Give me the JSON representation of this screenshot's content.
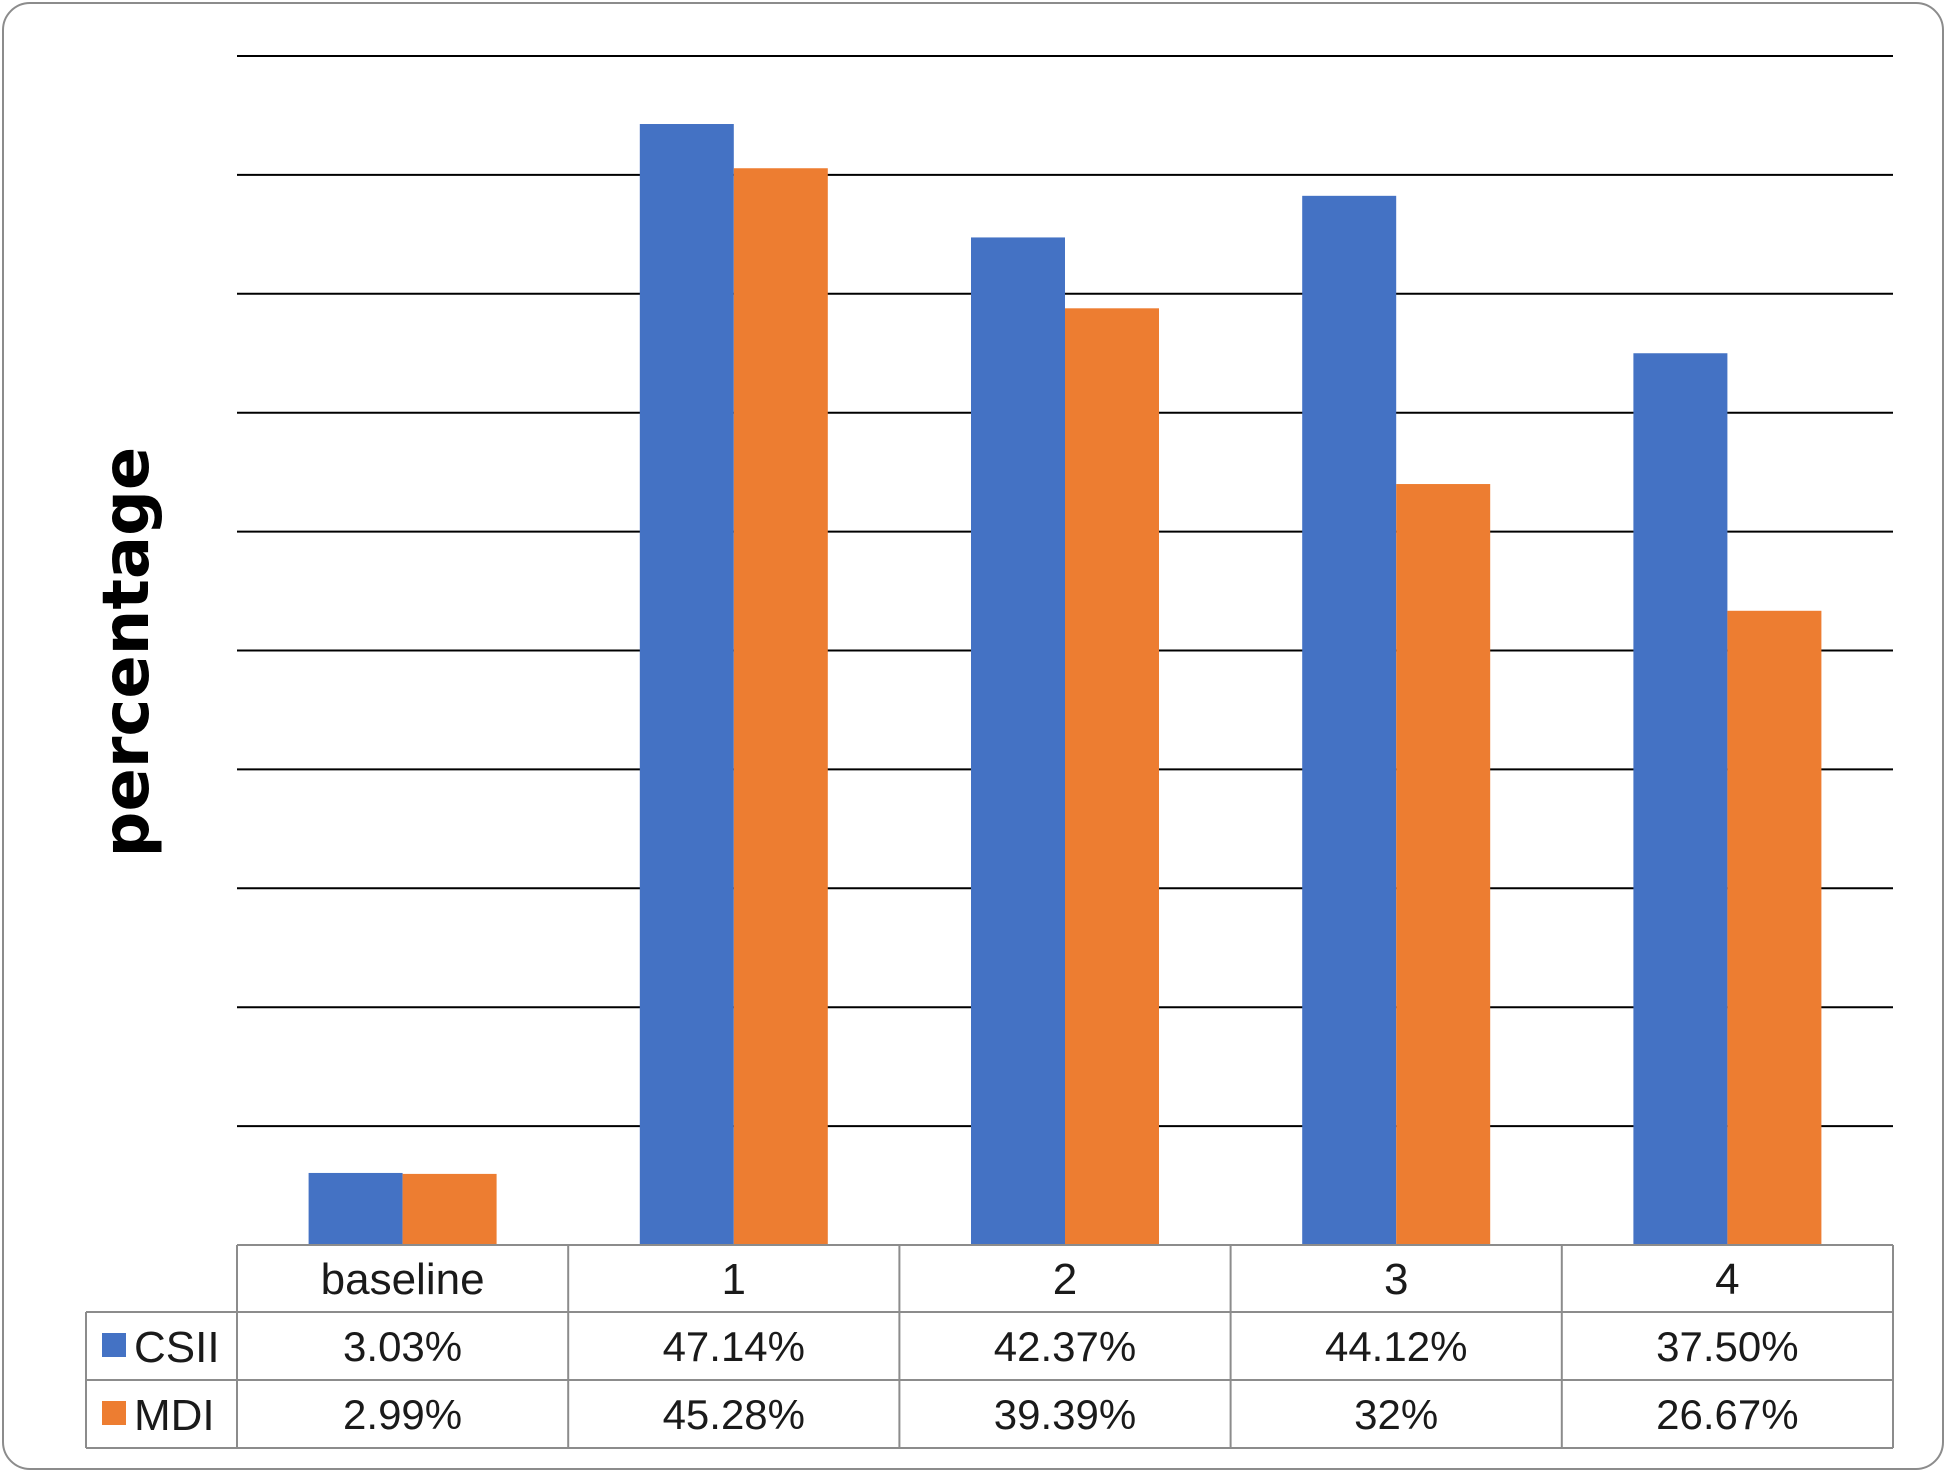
{
  "chart_data": {
    "type": "bar",
    "categories": [
      "baseline",
      "1",
      "2",
      "3",
      "4"
    ],
    "ylabel": "percentage",
    "xlabel": "",
    "title": "",
    "ylim": [
      0,
      50
    ],
    "gridlines": true,
    "legend": "bottom-left data table",
    "series": [
      {
        "name": "CSII",
        "color": "#4472C4",
        "values": [
          3.03,
          47.14,
          42.37,
          44.12,
          37.5
        ],
        "labels": [
          "3.03%",
          "47.14%",
          "42.37%",
          "44.12%",
          "37.50%"
        ]
      },
      {
        "name": "MDI",
        "color": "#ED7D31",
        "values": [
          2.99,
          45.28,
          39.39,
          32,
          26.67
        ],
        "labels": [
          "2.99%",
          "45.28%",
          "39.39%",
          "32%",
          "26.67%"
        ]
      }
    ]
  }
}
